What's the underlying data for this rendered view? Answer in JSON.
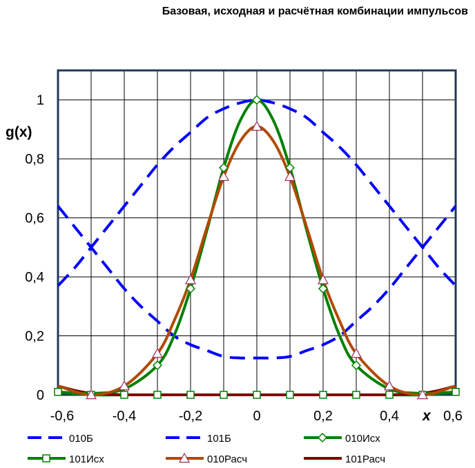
{
  "chart_data": {
    "type": "line",
    "title": "Базовая, исходная и расчётная комбинации импульсов",
    "xlabel": "x",
    "ylabel": "g(x)",
    "xlim": [
      -0.6,
      0.6
    ],
    "ylim": [
      0,
      1.1
    ],
    "grid": true,
    "legend_position": "bottom",
    "x_ticks": [
      -0.6,
      -0.4,
      -0.2,
      0,
      0.2,
      0.4,
      0.6
    ],
    "x_tick_labels": [
      "-0,6",
      "-0,4",
      "-0,2",
      "0",
      "0,2",
      "0,4",
      "0,6"
    ],
    "y_ticks": [
      0,
      0.2,
      0.4,
      0.6,
      0.8,
      1
    ],
    "y_tick_labels": [
      "0",
      "0,2",
      "0,4",
      "0,6",
      "0,8",
      "1"
    ],
    "series": [
      {
        "name": "010Б",
        "color": "#0000ff",
        "style": "dashed",
        "marker": "none",
        "x": [
          -0.6,
          -0.55,
          -0.5,
          -0.45,
          -0.4,
          -0.35,
          -0.3,
          -0.25,
          -0.2,
          -0.15,
          -0.1,
          -0.05,
          0,
          0.05,
          0.1,
          0.15,
          0.2,
          0.25,
          0.3,
          0.35,
          0.4,
          0.45,
          0.5,
          0.55,
          0.6
        ],
        "y": [
          0.37,
          0.43,
          0.5,
          0.57,
          0.64,
          0.71,
          0.78,
          0.84,
          0.89,
          0.94,
          0.97,
          0.99,
          1.0,
          0.99,
          0.97,
          0.94,
          0.89,
          0.84,
          0.78,
          0.71,
          0.64,
          0.57,
          0.5,
          0.43,
          0.37
        ]
      },
      {
        "name": "101Б",
        "color": "#0000ff",
        "style": "dashed",
        "marker": "none",
        "x": [
          -0.6,
          -0.55,
          -0.5,
          -0.45,
          -0.4,
          -0.35,
          -0.3,
          -0.25,
          -0.2,
          -0.15,
          -0.1,
          -0.05,
          0,
          0.05,
          0.1,
          0.15,
          0.2,
          0.25,
          0.3,
          0.35,
          0.4,
          0.45,
          0.5,
          0.55,
          0.6
        ],
        "y": [
          0.64,
          0.57,
          0.5,
          0.43,
          0.36,
          0.3,
          0.25,
          0.2,
          0.17,
          0.15,
          0.13,
          0.125,
          0.125,
          0.125,
          0.13,
          0.15,
          0.17,
          0.2,
          0.25,
          0.3,
          0.36,
          0.43,
          0.5,
          0.57,
          0.64
        ]
      },
      {
        "name": "010Исх",
        "color": "#008000",
        "style": "solid",
        "marker": "diamond",
        "x": [
          -0.6,
          -0.5,
          -0.4,
          -0.3,
          -0.25,
          -0.2,
          -0.15,
          -0.1,
          -0.05,
          0,
          0.05,
          0.1,
          0.15,
          0.2,
          0.25,
          0.3,
          0.4,
          0.5,
          0.6
        ],
        "y": [
          0.01,
          0.005,
          0.02,
          0.1,
          0.2,
          0.36,
          0.56,
          0.77,
          0.93,
          1.0,
          0.93,
          0.77,
          0.56,
          0.36,
          0.2,
          0.1,
          0.02,
          0.005,
          0.01
        ],
        "marker_x": [
          -0.3,
          -0.2,
          -0.1,
          0,
          0.1,
          0.2,
          0.3
        ],
        "marker_y": [
          0.1,
          0.36,
          0.77,
          1.0,
          0.77,
          0.36,
          0.1
        ]
      },
      {
        "name": "101Исх",
        "color": "#008000",
        "style": "solid",
        "marker": "square",
        "x": [
          -0.6,
          -0.5,
          -0.4,
          -0.3,
          -0.2,
          -0.1,
          0,
          0.1,
          0.2,
          0.3,
          0.4,
          0.5,
          0.6
        ],
        "y": [
          0.01,
          0.0,
          0.0,
          0.0,
          0.0,
          0.0,
          0.0,
          0.0,
          0.0,
          0.0,
          0.0,
          0.0,
          0.01
        ],
        "marker_x": [
          -0.6,
          -0.5,
          -0.4,
          -0.3,
          -0.2,
          -0.1,
          0,
          0.1,
          0.2,
          0.3,
          0.4,
          0.5,
          0.6
        ],
        "marker_y": [
          0.01,
          0.0,
          0.0,
          0.0,
          0.0,
          0.0,
          0.0,
          0.0,
          0.0,
          0.0,
          0.0,
          0.0,
          0.01
        ]
      },
      {
        "name": "010Расч",
        "color": "#b04a00",
        "style": "solid",
        "marker": "triangle",
        "x": [
          -0.6,
          -0.5,
          -0.4,
          -0.3,
          -0.25,
          -0.2,
          -0.15,
          -0.1,
          -0.05,
          0,
          0.05,
          0.1,
          0.15,
          0.2,
          0.25,
          0.3,
          0.4,
          0.5,
          0.6
        ],
        "y": [
          0.03,
          0.0,
          0.03,
          0.14,
          0.25,
          0.39,
          0.57,
          0.74,
          0.86,
          0.91,
          0.86,
          0.74,
          0.57,
          0.39,
          0.25,
          0.14,
          0.03,
          0.0,
          0.03
        ],
        "marker_x": [
          -0.5,
          -0.4,
          -0.3,
          -0.2,
          -0.1,
          0,
          0.1,
          0.2,
          0.3,
          0.4,
          0.5
        ],
        "marker_y": [
          0.0,
          0.03,
          0.14,
          0.39,
          0.74,
          0.91,
          0.74,
          0.39,
          0.14,
          0.03,
          0.0
        ]
      },
      {
        "name": "101Расч",
        "color": "#800000",
        "style": "solid",
        "marker": "none",
        "x": [
          -0.6,
          -0.55,
          -0.5,
          -0.45,
          -0.4,
          -0.3,
          -0.2,
          -0.1,
          0,
          0.1,
          0.2,
          0.3,
          0.4,
          0.45,
          0.5,
          0.55,
          0.6
        ],
        "y": [
          0.03,
          0.015,
          0.005,
          0.002,
          0.0,
          0.0,
          0.0,
          0.0,
          0.0,
          0.0,
          0.0,
          0.0,
          0.0,
          0.002,
          0.005,
          0.015,
          0.03
        ]
      }
    ]
  }
}
